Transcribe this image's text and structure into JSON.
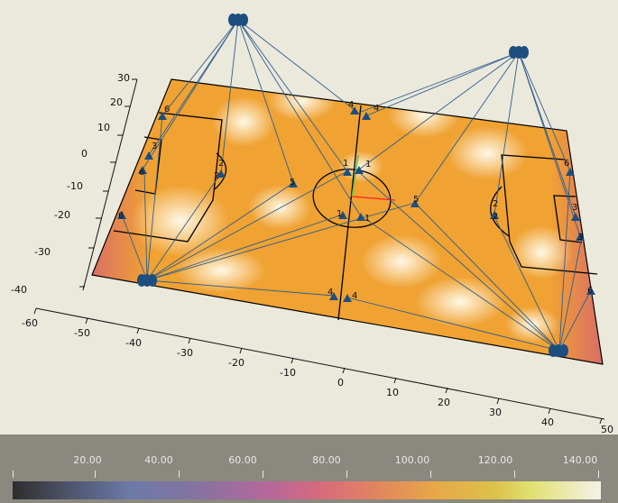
{
  "viewport": {
    "x_ticks": [
      "-60",
      "-50",
      "-40",
      "-30",
      "-20",
      "-10",
      "0",
      "10",
      "20",
      "30",
      "40",
      "50"
    ],
    "y_ticks": [
      "30",
      "20",
      "10",
      "0",
      "-10",
      "-20",
      "-30",
      "-40"
    ],
    "camera_labels": [
      "6",
      "3",
      "6",
      "6",
      "2",
      "2",
      "5",
      "4",
      "4",
      "1",
      "1",
      "1",
      "1",
      "5",
      "4",
      "4",
      "2",
      "2",
      "6",
      "3",
      "3",
      "6"
    ]
  },
  "colorbar": {
    "tick_labels": [
      "20.00",
      "40.00",
      "60.00",
      "80.00",
      "100.00",
      "120.00",
      "140.00"
    ]
  },
  "colors": {
    "background": "#ebe8dc",
    "field_orange": "#f0a030",
    "field_white": "#ffffff",
    "edge_pink": "#d06a6a",
    "ray_blue": "#2e5e8e",
    "camera_blue": "#1e4e7e",
    "colorbar_bg": "#8b887f"
  }
}
